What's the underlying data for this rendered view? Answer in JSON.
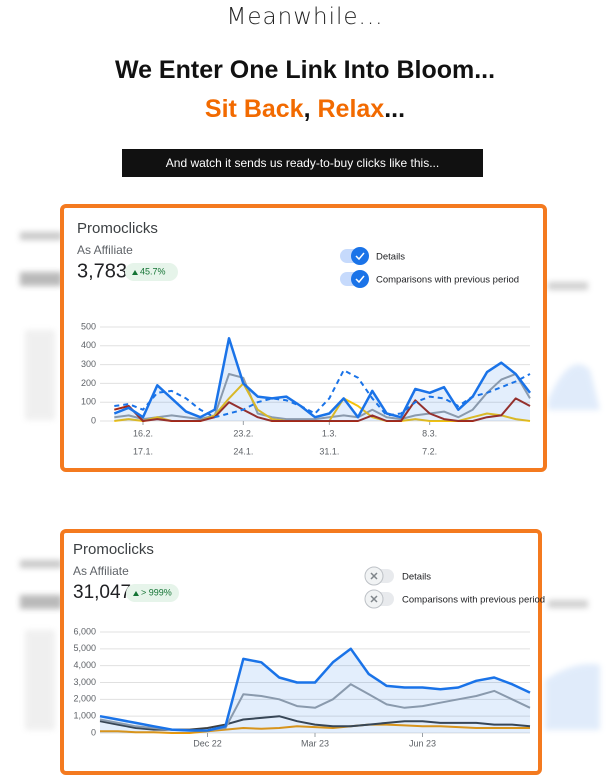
{
  "header": {
    "intro": "Meanwhile...",
    "headline": "We Enter One Link Into Bloom...",
    "subline": [
      {
        "text": "Sit Back",
        "color": "#f26a00"
      },
      {
        "text": ", ",
        "color": "#111111"
      },
      {
        "text": "Relax",
        "color": "#f26a00"
      },
      {
        "text": "...",
        "color": "#111111"
      }
    ],
    "banner": "And watch it sends us ready-to-buy clicks like this..."
  },
  "panels": [
    {
      "title": "Promoclicks",
      "label": "As Affiliate",
      "total": "3,783",
      "change": "45.7%",
      "toggles": [
        {
          "label": "Details",
          "on": true
        },
        {
          "label": "Comparisons with previous period",
          "on": true
        }
      ],
      "chart_data": {
        "type": "line",
        "xlim": [
          0,
          30
        ],
        "ylim": [
          0,
          500
        ],
        "yticks": [
          0,
          100,
          200,
          300,
          400,
          500
        ],
        "xticks": [
          {
            "value": 3,
            "label": "16.2."
          },
          {
            "value": 10,
            "label": "23.2."
          },
          {
            "value": 16,
            "label": "1.3."
          },
          {
            "value": 23,
            "label": "8.3."
          }
        ],
        "xticks2": [
          {
            "value": 3,
            "label": "17.1."
          },
          {
            "value": 10,
            "label": "24.1."
          },
          {
            "value": 16,
            "label": "31.1."
          },
          {
            "value": 23,
            "label": "7.2."
          }
        ],
        "grid": true,
        "x": [
          1,
          2,
          3,
          4,
          5,
          6,
          7,
          8,
          9,
          10,
          11,
          12,
          13,
          14,
          15,
          16,
          17,
          18,
          19,
          20,
          21,
          22,
          23,
          24,
          25,
          26,
          27,
          28,
          29,
          30
        ],
        "series": [
          {
            "color": "#9aa0a6",
            "values": [
              20,
              30,
              10,
              20,
              30,
              20,
              10,
              30,
              250,
              230,
              40,
              20,
              10,
              10,
              10,
              20,
              30,
              20,
              60,
              20,
              10,
              30,
              40,
              50,
              20,
              60,
              150,
              220,
              250,
              120
            ]
          },
          {
            "color": "#f4c20d",
            "values": [
              0,
              10,
              0,
              20,
              0,
              0,
              0,
              30,
              120,
              200,
              60,
              10,
              0,
              0,
              0,
              0,
              120,
              80,
              20,
              0,
              0,
              10,
              0,
              0,
              0,
              20,
              40,
              30,
              10,
              0
            ]
          },
          {
            "color": "#a52714",
            "values": [
              60,
              80,
              0,
              10,
              0,
              0,
              0,
              20,
              100,
              60,
              20,
              0,
              0,
              0,
              0,
              0,
              0,
              0,
              30,
              0,
              0,
              110,
              40,
              10,
              0,
              0,
              20,
              30,
              120,
              80
            ]
          },
          {
            "color": "#1a73e8",
            "dash": true,
            "values": [
              80,
              90,
              60,
              150,
              160,
              120,
              60,
              20,
              40,
              60,
              100,
              120,
              110,
              80,
              40,
              120,
              270,
              230,
              120,
              30,
              40,
              100,
              130,
              120,
              80,
              130,
              150,
              180,
              210,
              250
            ]
          },
          {
            "color": "#1a73e8",
            "area": true,
            "values": [
              40,
              70,
              20,
              190,
              120,
              50,
              20,
              60,
              440,
              200,
              130,
              120,
              130,
              80,
              20,
              40,
              120,
              20,
              160,
              40,
              20,
              170,
              150,
              180,
              60,
              130,
              260,
              310,
              250,
              150
            ]
          }
        ]
      }
    },
    {
      "title": "Promoclicks",
      "label": "As Affiliate",
      "total": "31,047",
      "change": "> 999%",
      "toggles": [
        {
          "label": "Details",
          "on": false
        },
        {
          "label": "Comparisons with previous period",
          "on": false
        }
      ],
      "chart_data": {
        "type": "line",
        "xlim": [
          0,
          12
        ],
        "ylim": [
          0,
          6000
        ],
        "yticks": [
          0,
          {
            "value": 1000,
            "label": "1,000"
          },
          {
            "value": 2000,
            "label": "2,000"
          },
          {
            "value": 3000,
            "label": "3,000"
          },
          {
            "value": 4000,
            "label": "4,000"
          },
          {
            "value": 5000,
            "label": "5,000"
          },
          {
            "value": 6000,
            "label": "6,000"
          }
        ],
        "xticks": [
          {
            "value": 3,
            "label": "Dec 22"
          },
          {
            "value": 6,
            "label": "Mar 23"
          },
          {
            "value": 9,
            "label": "Jun 23"
          }
        ],
        "grid": true,
        "x": [
          0,
          0.5,
          1,
          1.5,
          2,
          2.5,
          3,
          3.5,
          4,
          4.5,
          5,
          5.5,
          6,
          6.5,
          7,
          7.5,
          8,
          8.5,
          9,
          9.5,
          10,
          10.5,
          11,
          11.5,
          12
        ],
        "series": [
          {
            "color": "#f29900",
            "values": [
              100,
              100,
              50,
              50,
              0,
              0,
              100,
              200,
              300,
              250,
              300,
              400,
              350,
              300,
              400,
              500,
              500,
              450,
              400,
              400,
              350,
              300,
              300,
              300,
              300
            ]
          },
          {
            "color": "#3c4043",
            "values": [
              700,
              500,
              300,
              200,
              200,
              200,
              300,
              500,
              800,
              900,
              1000,
              700,
              500,
              400,
              400,
              500,
              600,
              700,
              700,
              600,
              600,
              600,
              500,
              500,
              400
            ]
          },
          {
            "color": "#9aa0a6",
            "values": [
              800,
              600,
              400,
              300,
              200,
              150,
              150,
              300,
              2300,
              2200,
              2000,
              1600,
              1500,
              2000,
              2900,
              2300,
              1700,
              1500,
              1600,
              1800,
              2000,
              2200,
              2500,
              2000,
              1500
            ]
          },
          {
            "color": "#1a73e8",
            "area": true,
            "values": [
              1000,
              800,
              600,
              400,
              200,
              150,
              150,
              400,
              4400,
              4200,
              3300,
              3000,
              3000,
              4200,
              5000,
              3500,
              2800,
              2700,
              2700,
              2600,
              2700,
              3100,
              3300,
              2900,
              2400
            ]
          }
        ]
      }
    }
  ]
}
